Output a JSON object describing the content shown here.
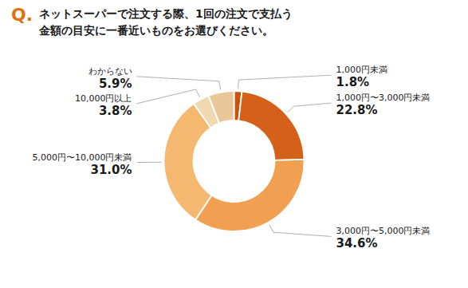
{
  "chart_data": {
    "type": "donut",
    "title": "ネットスーパーで注文する際、1回の注文で支払う\n金額の目安に一番近いものをお選びください。",
    "annotations": [
      {
        "text": "Q.",
        "color": "#e07010"
      }
    ],
    "categories": [
      "1,000円未満",
      "1,000円〜3,000円未満",
      "3,000円〜5,000円未満",
      "5,000円〜10,000円未満",
      "10,000円以上",
      "わからない"
    ],
    "values": [
      1.8,
      22.8,
      34.6,
      31.0,
      3.8,
      5.9
    ],
    "value_labels": [
      "1.8%",
      "22.8%",
      "34.6%",
      "31.0%",
      "3.8%",
      "5.9%"
    ],
    "colors": [
      "#c8540a",
      "#d4601a",
      "#f0a050",
      "#f5b870",
      "#f0d8b0",
      "#e8c898"
    ],
    "data_labels": true
  }
}
